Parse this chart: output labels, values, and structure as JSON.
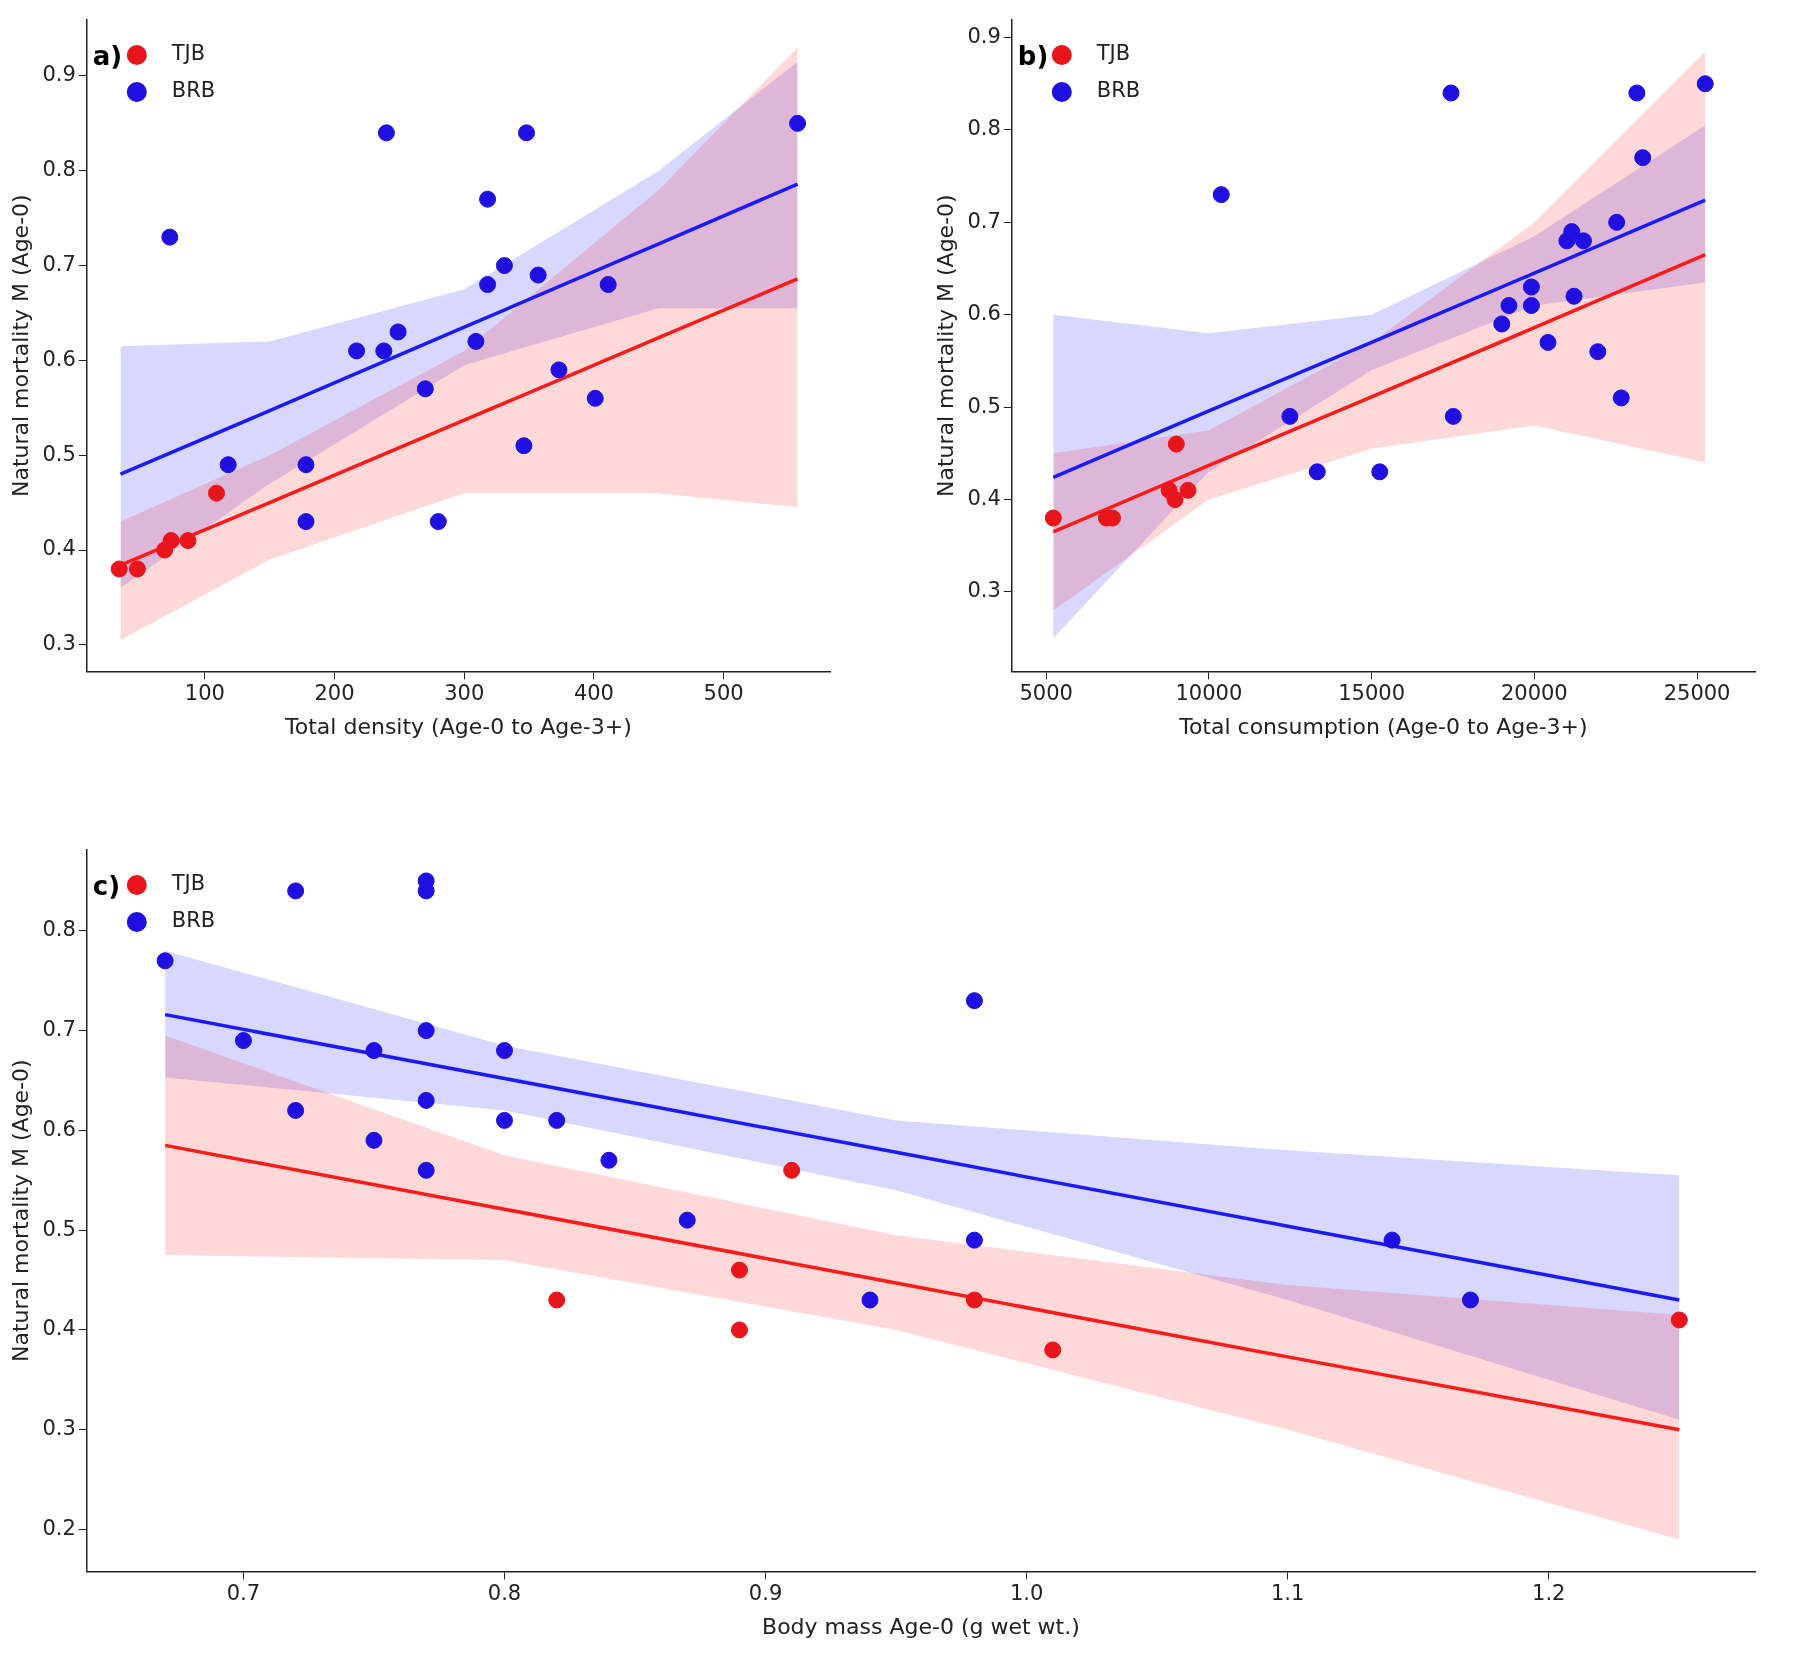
{
  "chart_data": [
    {
      "type": "scatter",
      "annotations": [
        "a)"
      ],
      "xlabel": "Total density (Age-0 to Age-3+)",
      "ylabel": "Natural mortality M (Age-0)",
      "xlim": [
        9,
        582
      ],
      "ylim": [
        0.272,
        0.959
      ],
      "xticks": [
        100,
        200,
        300,
        400,
        500
      ],
      "yticks": [
        0.3,
        0.4,
        0.5,
        0.6,
        0.7,
        0.8,
        0.9
      ],
      "grid": false,
      "legend": "top left",
      "series": [
        {
          "name": "TJB",
          "color": "#e8161b",
          "marker": "circle",
          "x": [
            34,
            48,
            69,
            74,
            87,
            109
          ],
          "values": [
            0.38,
            0.38,
            0.4,
            0.41,
            0.41,
            0.46
          ]
        },
        {
          "name": "BRB",
          "color": "#1f0fe0",
          "marker": "circle",
          "x": [
            73,
            118,
            178,
            178,
            217,
            238,
            240,
            249,
            270,
            280,
            309,
            318,
            318,
            331,
            346,
            348,
            357,
            373,
            401,
            411,
            557
          ],
          "values": [
            0.73,
            0.49,
            0.49,
            0.43,
            0.61,
            0.61,
            0.84,
            0.63,
            0.57,
            0.43,
            0.62,
            0.68,
            0.77,
            0.7,
            0.51,
            0.84,
            0.69,
            0.59,
            0.56,
            0.68,
            0.85
          ]
        },
        {
          "type": "line",
          "color": "#ff1a1a",
          "marker": "none",
          "x": [
            35,
            150,
            300,
            450,
            557
          ],
          "values": [
            0.384,
            0.45,
            0.537,
            0.624,
            0.686
          ],
          "lower": [
            0.305,
            0.39,
            0.46,
            0.46,
            0.445
          ],
          "upper": [
            0.43,
            0.5,
            0.61,
            0.78,
            0.93
          ]
        },
        {
          "type": "line",
          "color": "#1a1aff",
          "marker": "none",
          "x": [
            35,
            150,
            300,
            450,
            557
          ],
          "values": [
            0.48,
            0.547,
            0.635,
            0.723,
            0.786
          ],
          "lower": [
            0.36,
            0.47,
            0.595,
            0.655,
            0.655
          ],
          "upper": [
            0.615,
            0.62,
            0.675,
            0.8,
            0.915
          ]
        }
      ]
    },
    {
      "type": "scatter",
      "annotations": [
        "b)"
      ],
      "xlabel": "Total consumption (Age-0 to Age-3+)",
      "ylabel": "Natural mortality M (Age-0)",
      "xlim": [
        3945,
        26780
      ],
      "ylim": [
        0.214,
        0.919
      ],
      "xticks": [
        5000,
        10000,
        15000,
        20000,
        25000
      ],
      "yticks": [
        0.3,
        0.4,
        0.5,
        0.6,
        0.7,
        0.8,
        0.9
      ],
      "grid": false,
      "legend": "top left",
      "series": [
        {
          "name": "TJB",
          "color": "#e8161b",
          "marker": "circle",
          "x": [
            5220,
            6850,
            7040,
            8780,
            8960,
            9000,
            9360
          ],
          "values": [
            0.38,
            0.38,
            0.38,
            0.41,
            0.4,
            0.46,
            0.41
          ]
        },
        {
          "name": "BRB",
          "color": "#1f0fe0",
          "marker": "circle",
          "x": [
            10380,
            12490,
            13330,
            15250,
            17440,
            17510,
            19000,
            19220,
            19910,
            19910,
            20420,
            21000,
            21150,
            21220,
            21510,
            21950,
            22530,
            22670,
            23150,
            23330,
            25250
          ],
          "values": [
            0.73,
            0.49,
            0.43,
            0.43,
            0.84,
            0.49,
            0.59,
            0.61,
            0.63,
            0.61,
            0.57,
            0.68,
            0.69,
            0.62,
            0.68,
            0.56,
            0.7,
            0.51,
            0.84,
            0.77,
            0.85
          ]
        },
        {
          "type": "line",
          "color": "#ff1a1a",
          "marker": "none",
          "x": [
            5220,
            10000,
            15000,
            20000,
            25250
          ],
          "values": [
            0.365,
            0.437,
            0.511,
            0.586,
            0.665
          ],
          "lower": [
            0.28,
            0.4,
            0.455,
            0.48,
            0.44
          ],
          "upper": [
            0.45,
            0.475,
            0.57,
            0.7,
            0.885
          ]
        },
        {
          "type": "line",
          "color": "#1a1aff",
          "marker": "none",
          "x": [
            5220,
            10000,
            15000,
            20000,
            25250
          ],
          "values": [
            0.424,
            0.496,
            0.57,
            0.645,
            0.724
          ],
          "lower": [
            0.25,
            0.43,
            0.54,
            0.61,
            0.635
          ],
          "upper": [
            0.6,
            0.58,
            0.6,
            0.685,
            0.805
          ]
        }
      ]
    },
    {
      "type": "scatter",
      "annotations": [
        "c)"
      ],
      "xlabel": "Body mass Age-0 (g wet wt.)",
      "ylabel": "Natural mortality M (Age-0)",
      "xlim": [
        0.64,
        1.279
      ],
      "ylim": [
        0.158,
        0.881
      ],
      "xticks": [
        0.7,
        0.8,
        0.9,
        {
          "value": 1.0,
          "label": "1.0"
        },
        1.1,
        1.2
      ],
      "yticks": [
        0.2,
        0.3,
        0.4,
        0.5,
        0.6,
        0.7,
        0.8
      ],
      "grid": false,
      "legend": "top left",
      "series": [
        {
          "name": "TJB",
          "color": "#e8161b",
          "marker": "circle",
          "x": [
            0.82,
            0.89,
            0.89,
            0.91,
            0.98,
            1.01,
            1.25
          ],
          "values": [
            0.43,
            0.46,
            0.4,
            0.56,
            0.43,
            0.38,
            0.41
          ]
        },
        {
          "name": "BRB",
          "color": "#1f0fe0",
          "marker": "circle",
          "x": [
            0.67,
            0.7,
            0.72,
            0.72,
            0.75,
            0.75,
            0.77,
            0.77,
            0.77,
            0.77,
            0.77,
            0.8,
            0.8,
            0.82,
            0.84,
            0.87,
            0.94,
            0.98,
            0.98,
            1.14,
            1.17
          ],
          "values": [
            0.77,
            0.69,
            0.84,
            0.62,
            0.68,
            0.59,
            0.85,
            0.84,
            0.7,
            0.63,
            0.56,
            0.68,
            0.61,
            0.61,
            0.57,
            0.51,
            0.43,
            0.73,
            0.49,
            0.49,
            0.43
          ]
        },
        {
          "type": "line",
          "color": "#ff1a1a",
          "marker": "none",
          "x": [
            0.67,
            0.8,
            0.95,
            1.1,
            1.25
          ],
          "values": [
            0.585,
            0.521,
            0.447,
            0.373,
            0.3
          ],
          "lower": [
            0.475,
            0.47,
            0.4,
            0.3,
            0.19
          ],
          "upper": [
            0.695,
            0.575,
            0.495,
            0.445,
            0.415
          ]
        },
        {
          "type": "line",
          "color": "#1a1aff",
          "marker": "none",
          "x": [
            0.67,
            0.8,
            0.95,
            1.1,
            1.25
          ],
          "values": [
            0.716,
            0.652,
            0.578,
            0.504,
            0.43
          ],
          "lower": [
            0.653,
            0.62,
            0.54,
            0.43,
            0.31
          ],
          "upper": [
            0.78,
            0.685,
            0.61,
            0.58,
            0.555
          ]
        }
      ]
    }
  ]
}
